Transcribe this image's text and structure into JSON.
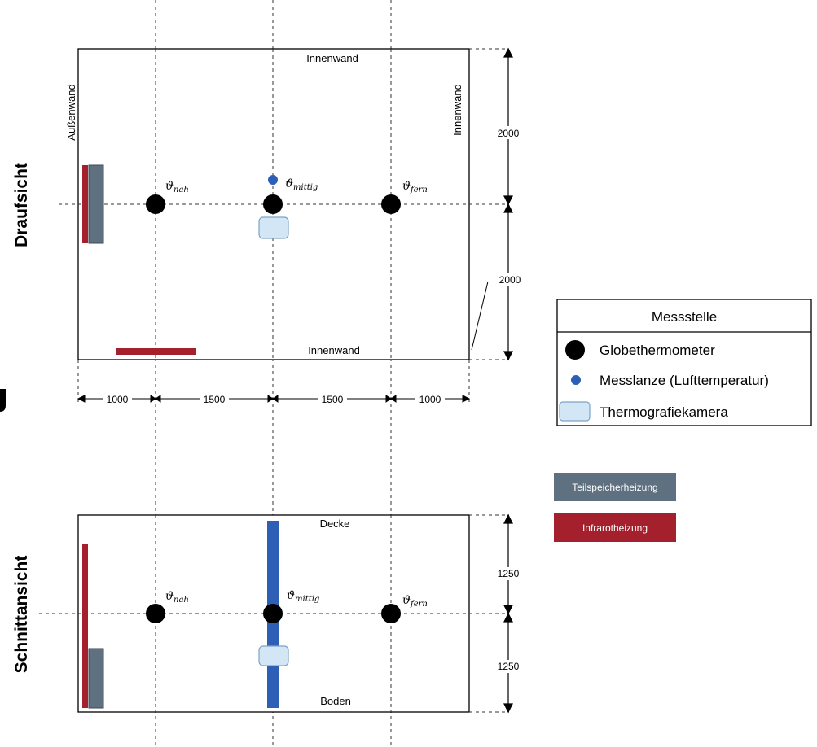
{
  "views": {
    "top": "Draufsicht",
    "section": "Schnittansicht"
  },
  "walls": {
    "outer": "Außenwand",
    "inner_top": "Innenwand",
    "inner_right": "Innenwand",
    "inner_bottom": "Innenwand",
    "ceiling": "Decke",
    "floor": "Boden"
  },
  "points": {
    "near": {
      "symbol": "ϑ",
      "sub": "nah"
    },
    "mid": {
      "symbol": "ϑ",
      "sub": "mittig"
    },
    "far": {
      "symbol": "ϑ",
      "sub": "fern"
    }
  },
  "dimensions": {
    "top_width": [
      "1000",
      "1500",
      "1500",
      "1000"
    ],
    "top_depth": [
      "2000",
      "2000"
    ],
    "section_height": [
      "1250",
      "1250"
    ]
  },
  "legend": {
    "title": "Messstelle",
    "items": [
      {
        "label": "Globethermometer",
        "icon": "black-circle"
      },
      {
        "label": "Messlanze (Lufttemperatur)",
        "icon": "blue-dot"
      },
      {
        "label": "Thermografiekamera",
        "icon": "light-blue-box"
      }
    ]
  },
  "heaters": {
    "storage": {
      "label": "Teilspeicherheizung",
      "color": "#5f7180"
    },
    "infrared": {
      "label": "Infrarotheizung",
      "color": "#a3202c"
    }
  },
  "colors": {
    "globe": "#000000",
    "lance": "#2c5fb5",
    "camera_fill": "#d3e6f5",
    "camera_stroke": "#7fa3c4"
  }
}
